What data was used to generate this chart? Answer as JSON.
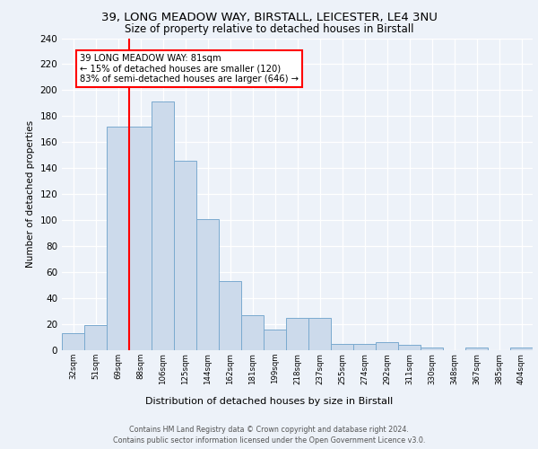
{
  "title1": "39, LONG MEADOW WAY, BIRSTALL, LEICESTER, LE4 3NU",
  "title2": "Size of property relative to detached houses in Birstall",
  "xlabel": "Distribution of detached houses by size in Birstall",
  "ylabel": "Number of detached properties",
  "categories": [
    "32sqm",
    "51sqm",
    "69sqm",
    "88sqm",
    "106sqm",
    "125sqm",
    "144sqm",
    "162sqm",
    "181sqm",
    "199sqm",
    "218sqm",
    "237sqm",
    "255sqm",
    "274sqm",
    "292sqm",
    "311sqm",
    "330sqm",
    "348sqm",
    "367sqm",
    "385sqm",
    "404sqm"
  ],
  "values": [
    13,
    19,
    172,
    172,
    191,
    146,
    101,
    53,
    27,
    16,
    25,
    25,
    5,
    5,
    6,
    4,
    2,
    0,
    2,
    0,
    2
  ],
  "bar_color": "#ccdaeb",
  "bar_edge_color": "#7aaacf",
  "annotation_text": "39 LONG MEADOW WAY: 81sqm\n← 15% of detached houses are smaller (120)\n83% of semi-detached houses are larger (646) →",
  "annotation_box_color": "white",
  "annotation_box_edge_color": "red",
  "vline_color": "red",
  "vline_x": 2.5,
  "ylim": [
    0,
    240
  ],
  "yticks": [
    0,
    20,
    40,
    60,
    80,
    100,
    120,
    140,
    160,
    180,
    200,
    220,
    240
  ],
  "footer_line1": "Contains HM Land Registry data © Crown copyright and database right 2024.",
  "footer_line2": "Contains public sector information licensed under the Open Government Licence v3.0.",
  "bg_color": "#edf2f9",
  "plot_bg_color": "#edf2f9"
}
